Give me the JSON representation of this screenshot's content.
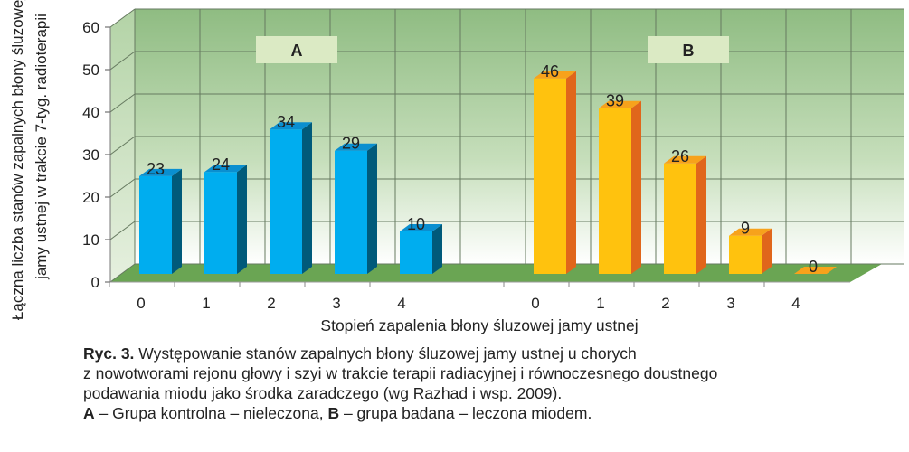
{
  "chart_data": {
    "type": "bar",
    "ylabel_lines": [
      "Łączna liczba stanów zapalnych błony śluzowej",
      "jamy ustnej w trakcie 7-tyg. radioterapii"
    ],
    "xlabel": "Stopień zapalenia błony śluzowej jamy ustnej",
    "ylim": [
      0,
      60
    ],
    "yticks": [
      "0",
      "10",
      "20",
      "30",
      "40",
      "50",
      "60"
    ],
    "grid": true,
    "groups": [
      {
        "label": "A",
        "categories": [
          "0",
          "1",
          "2",
          "3",
          "4"
        ],
        "values": [
          23,
          24,
          34,
          29,
          10
        ],
        "color": "#00adef",
        "side_color": "#005a7a"
      },
      {
        "label": "B",
        "categories": [
          "0",
          "1",
          "2",
          "3",
          "4"
        ],
        "values": [
          46,
          39,
          26,
          9,
          0
        ],
        "color": "#ffc20e",
        "side_color": "#e0661b"
      }
    ]
  },
  "caption": {
    "lead": "Ryc. 3.",
    "line1": " Występowanie stanów zapalnych błony śluzowej jamy ustnej u chorych",
    "line2": "z nowotworami rejonu głowy i szyi w trakcie terapii radiacyjnej i równoczesnego doustnego",
    "line3": "podawania miodu jako środka zaradczego (wg Razhad i wsp. 2009).",
    "a": "A",
    "a_text": " – Grupa kontrolna – nieleczona, ",
    "b": "B",
    "b_text": " – grupa badana – leczona miodem."
  }
}
